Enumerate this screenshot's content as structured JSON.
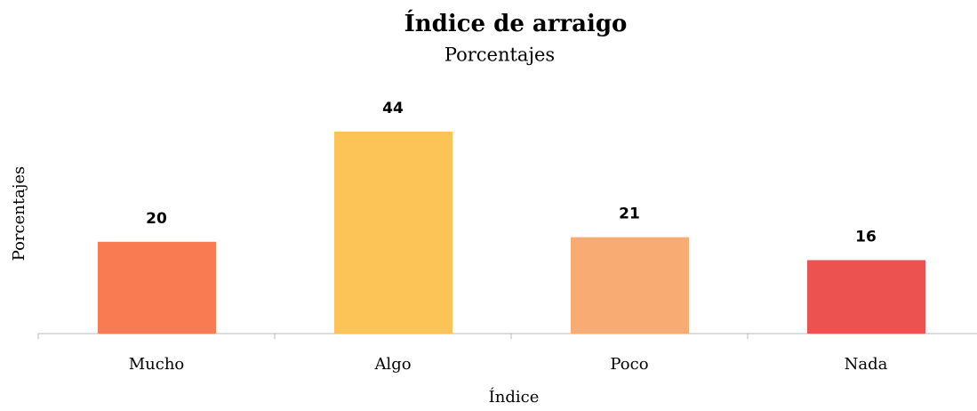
{
  "chart_data": {
    "type": "bar",
    "title": "Índice de arraigo",
    "subtitle": "Porcentajes",
    "x_label": "Índice",
    "y_label": "Porcentajes",
    "categories": [
      "Mucho",
      "Algo",
      "Poco",
      "Nada"
    ],
    "values": [
      20,
      44,
      21,
      16
    ],
    "colors": [
      "#f97b52",
      "#fcc457",
      "#f9ab74",
      "#ec5350"
    ],
    "ylim": [
      0,
      50
    ]
  }
}
